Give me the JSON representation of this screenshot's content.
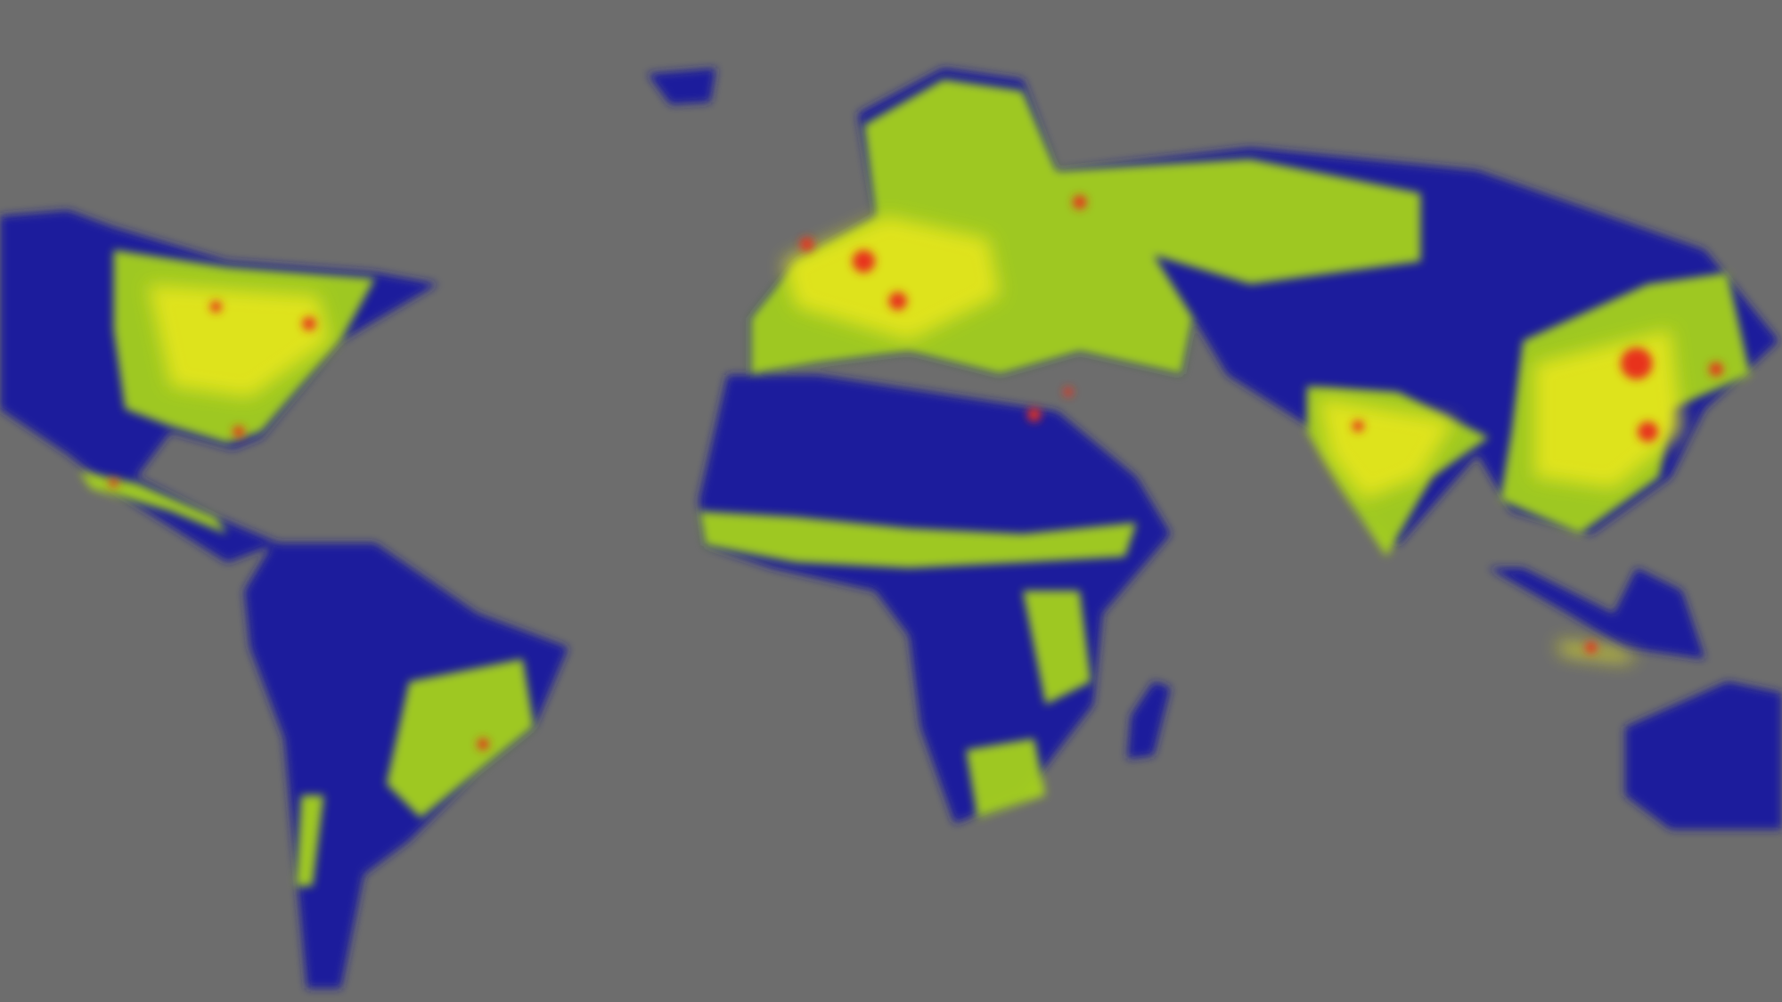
{
  "map": {
    "background_color": "#6d6d6d",
    "palette": {
      "low": "#1a1a9c",
      "mid_low": "#3f8a3a",
      "mid": "#a6d21e",
      "mid_high": "#e6e61a",
      "high": "#f0a020",
      "peak": "#e8321e"
    }
  }
}
